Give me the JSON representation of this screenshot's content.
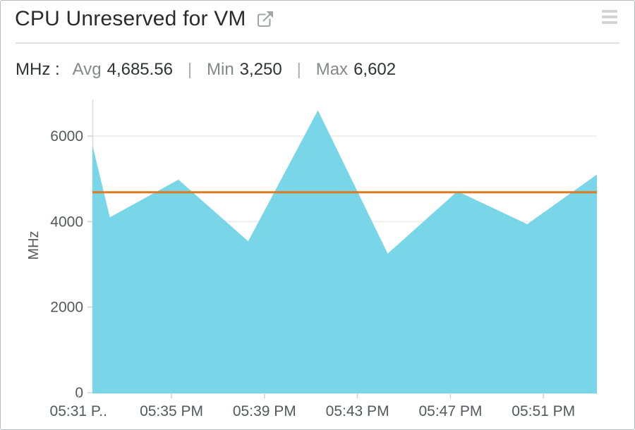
{
  "header": {
    "title": "CPU Unreserved for VM",
    "external_link_icon": "open-in-new-window",
    "menu_icon": "hamburger-menu"
  },
  "stats": {
    "unit_label": "MHz :",
    "avg_label": "Avg",
    "avg_value": "4,685.56",
    "separator": "|",
    "min_label": "Min",
    "min_value": "3,250",
    "max_label": "Max",
    "max_value": "6,602"
  },
  "chart_data": {
    "type": "area",
    "title": "CPU Unreserved for VM",
    "xlabel": "",
    "ylabel": "MHz",
    "ylim": [
      0,
      6700
    ],
    "y_ticks": [
      0,
      2000,
      4000,
      6000
    ],
    "grid": true,
    "legend": false,
    "x_axis_unit": "minutes-after-5:00-PM",
    "x_ticks": [
      {
        "t": 31,
        "label": "05:31 P.."
      },
      {
        "t": 35,
        "label": "05:35 PM"
      },
      {
        "t": 39,
        "label": "05:39 PM"
      },
      {
        "t": 43,
        "label": "05:43 PM"
      },
      {
        "t": 47,
        "label": "05:47 PM"
      },
      {
        "t": 51,
        "label": "05:51 PM"
      }
    ],
    "series": [
      {
        "name": "CPU Unreserved for VM (MHz)",
        "color": "#79d5e8",
        "points": [
          {
            "t": 31.6,
            "mhz": 5790
          },
          {
            "t": 32.35,
            "mhz": 4100
          },
          {
            "t": 35.3,
            "mhz": 4980
          },
          {
            "t": 38.3,
            "mhz": 3540
          },
          {
            "t": 41.3,
            "mhz": 6602
          },
          {
            "t": 44.3,
            "mhz": 3250
          },
          {
            "t": 47.3,
            "mhz": 4710
          },
          {
            "t": 50.3,
            "mhz": 3940
          },
          {
            "t": 53.3,
            "mhz": 5100
          }
        ]
      }
    ],
    "avg_line": {
      "value": 4685.56,
      "color": "#de7a1f"
    },
    "summary": {
      "avg": 4685.56,
      "min": 3250,
      "max": 6602
    }
  },
  "colors": {
    "area": "#79d5e8",
    "avg_line": "#de7a1f",
    "axis_text": "#55585c",
    "gridline": "#ececec",
    "axis_line": "#dcdcdc",
    "tick_mark": "#d0d0d0",
    "bottom_line": "#e4e4e4",
    "title_text": "#2b2b2b",
    "muted_text": "#85888a",
    "icon_gray": "#a3a5a7",
    "menu_gray": "#d3d3d3",
    "border": "#b9bcbe",
    "divider": "#e1e1e1"
  }
}
